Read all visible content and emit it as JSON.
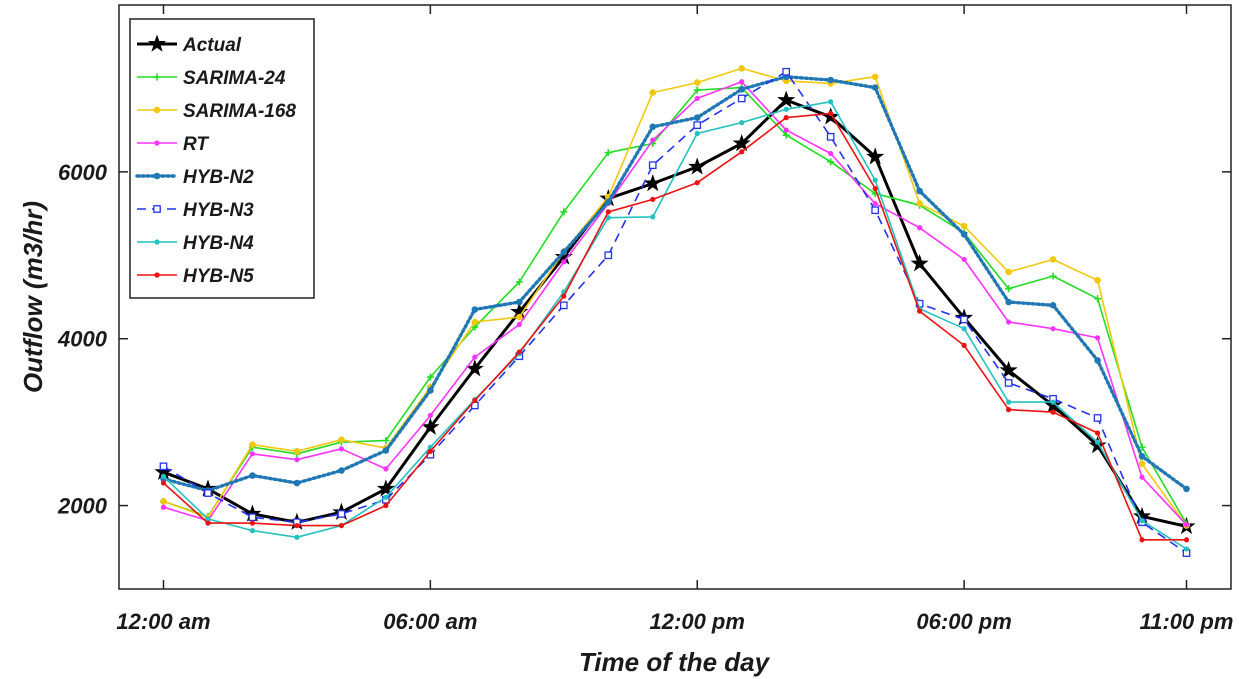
{
  "chart_data": {
    "type": "line",
    "title": "",
    "xlabel": "Time of the day",
    "ylabel": "Outflow (m3/hr)",
    "x": [
      0,
      1,
      2,
      3,
      4,
      5,
      6,
      7,
      8,
      9,
      10,
      11,
      12,
      13,
      14,
      15,
      16,
      17,
      18,
      19,
      20,
      21,
      22,
      23
    ],
    "x_ticks": [
      {
        "x": 0,
        "label": "12:00 am"
      },
      {
        "x": 6,
        "label": "06:00 am"
      },
      {
        "x": 12,
        "label": "12:00 pm"
      },
      {
        "x": 18,
        "label": "06:00 pm"
      },
      {
        "x": 23,
        "label": "11:00 pm"
      }
    ],
    "y_ticks": [
      2000,
      4000,
      6000
    ],
    "xlim": [
      -1,
      24
    ],
    "ylim": [
      1000,
      8000
    ],
    "grid": false,
    "legend_position": "top-left",
    "series": [
      {
        "name": "Actual",
        "color": "#000000",
        "style": "solid",
        "marker": "star",
        "values": [
          2400,
          2200,
          1900,
          1800,
          1920,
          2200,
          2940,
          3640,
          4320,
          4980,
          5680,
          5860,
          6060,
          6340,
          6860,
          6660,
          6180,
          4900,
          4250,
          3620,
          3200,
          2720,
          1870,
          1750
        ]
      },
      {
        "name": "SARIMA-24",
        "color": "#22dd22",
        "style": "solid",
        "marker": "plus",
        "values": [
          2050,
          1870,
          2700,
          2620,
          2760,
          2780,
          3540,
          4140,
          4680,
          5520,
          6230,
          6340,
          6980,
          7010,
          6440,
          6120,
          5740,
          5600,
          5270,
          4600,
          4750,
          4480,
          2700,
          1780
        ]
      },
      {
        "name": "SARIMA-168",
        "color": "#f2c80f",
        "style": "solid",
        "marker": "circle",
        "values": [
          2050,
          1860,
          2730,
          2650,
          2790,
          2690,
          3420,
          4200,
          4260,
          5040,
          5700,
          6950,
          7070,
          7240,
          7090,
          7060,
          7140,
          5620,
          5350,
          4800,
          4950,
          4700,
          2500,
          1760
        ]
      },
      {
        "name": "RT",
        "color": "#ff33ff",
        "style": "solid",
        "marker": "dot",
        "values": [
          1980,
          1820,
          2620,
          2550,
          2680,
          2440,
          3080,
          3780,
          4170,
          4920,
          5620,
          6380,
          6880,
          7080,
          6500,
          6220,
          5620,
          5330,
          4950,
          4200,
          4120,
          4010,
          2340,
          1770
        ]
      },
      {
        "name": "HYB-N2",
        "color": "#1f77b4",
        "style": "dotted",
        "marker": "circle",
        "values": [
          2320,
          2180,
          2360,
          2270,
          2420,
          2660,
          3380,
          4350,
          4440,
          5040,
          5640,
          6540,
          6650,
          6990,
          7140,
          7100,
          7010,
          5770,
          5250,
          4440,
          4400,
          3740,
          2590,
          2200
        ]
      },
      {
        "name": "HYB-N3",
        "color": "#2233ee",
        "style": "dashed",
        "marker": "square",
        "values": [
          2470,
          2150,
          1860,
          1800,
          1900,
          2070,
          2610,
          3200,
          3790,
          4400,
          5000,
          6080,
          6560,
          6880,
          7200,
          6420,
          5540,
          4420,
          4230,
          3470,
          3280,
          3050,
          1800,
          1430
        ]
      },
      {
        "name": "HYB-N4",
        "color": "#22c2c2",
        "style": "solid",
        "marker": "dot",
        "values": [
          2350,
          1840,
          1700,
          1620,
          1760,
          2100,
          2700,
          3270,
          3820,
          4560,
          5450,
          5460,
          6460,
          6590,
          6750,
          6840,
          5900,
          4360,
          4120,
          3240,
          3240,
          2760,
          1820,
          1480
        ]
      },
      {
        "name": "HYB-N5",
        "color": "#ee1111",
        "style": "solid",
        "marker": "dot",
        "values": [
          2270,
          1790,
          1790,
          1760,
          1760,
          2000,
          2650,
          3260,
          3840,
          4510,
          5520,
          5670,
          5870,
          6240,
          6650,
          6700,
          5800,
          4330,
          3920,
          3150,
          3120,
          2870,
          1590,
          1590
        ]
      }
    ]
  }
}
